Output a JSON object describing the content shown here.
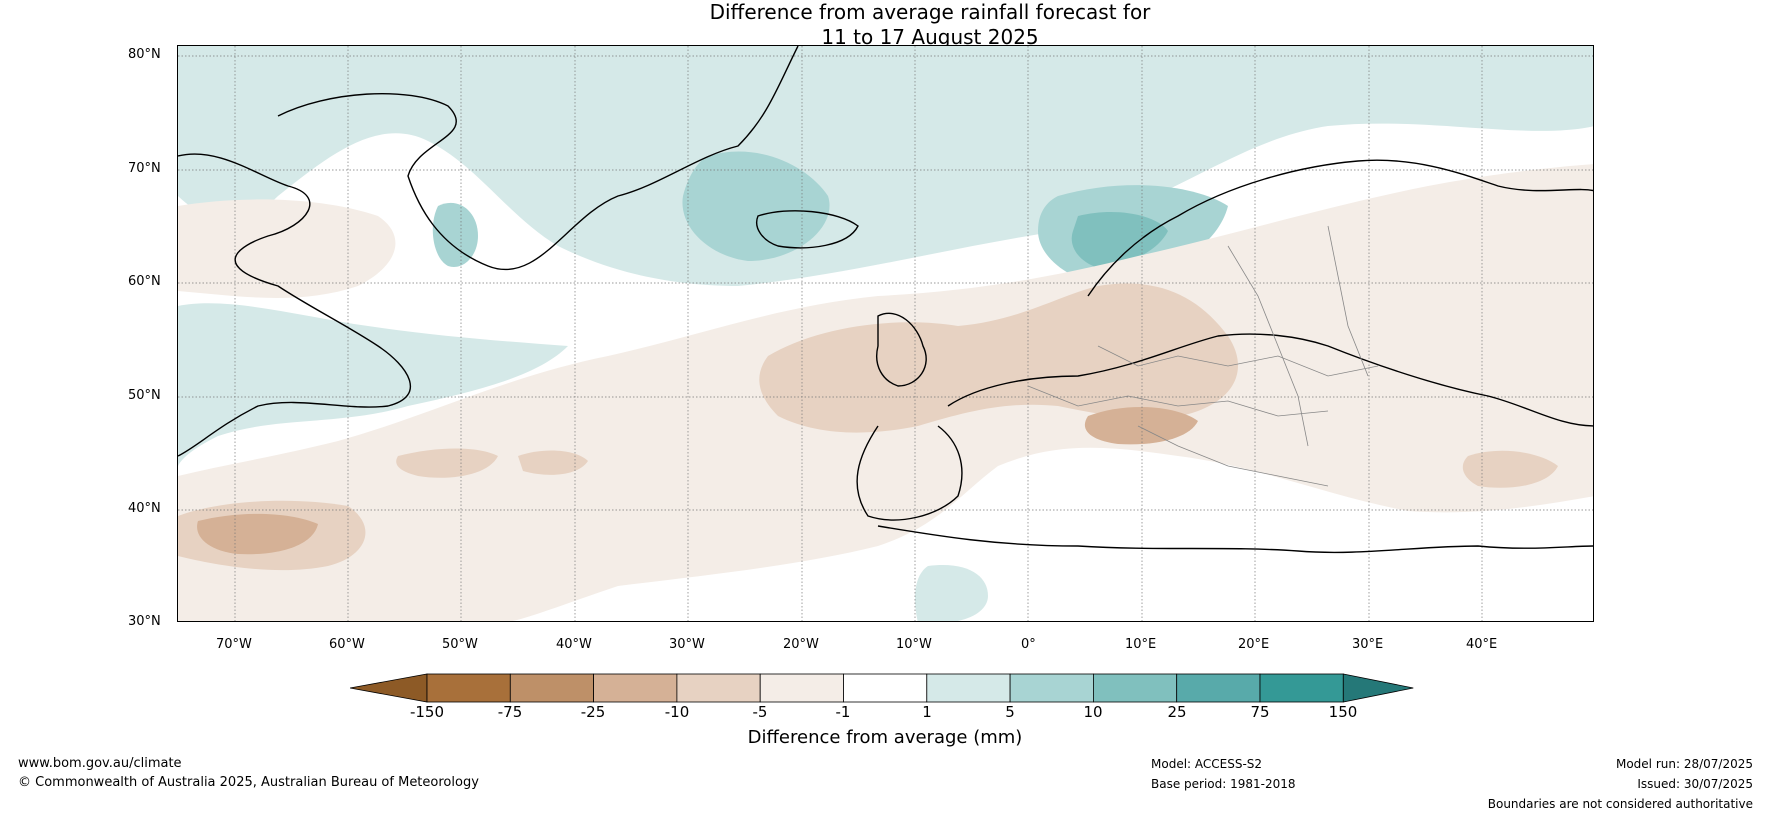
{
  "title_line1": "Difference from average rainfall forecast for",
  "title_line2": "11 to 17 August 2025",
  "lat_labels": [
    "80°N",
    "70°N",
    "60°N",
    "50°N",
    "40°N",
    "30°N"
  ],
  "lon_labels": [
    "70°W",
    "60°W",
    "50°W",
    "40°W",
    "30°W",
    "20°W",
    "10°W",
    "0°",
    "10°E",
    "20°E",
    "30°E",
    "40°E"
  ],
  "colorbar": {
    "title": "Difference from average (mm)",
    "ticks": [
      "-150",
      "-75",
      "-25",
      "-10",
      "-5",
      "-1",
      "1",
      "5",
      "10",
      "25",
      "75",
      "150"
    ],
    "colors": [
      "#a8703a",
      "#be9068",
      "#d5b196",
      "#e7d2c2",
      "#f4ede7",
      "#ffffff",
      "#d5e9e8",
      "#a8d4d3",
      "#80c0be",
      "#58aaaa",
      "#349996"
    ],
    "low_extend_color": "#8d5a26",
    "high_extend_color": "#257878"
  },
  "footer": {
    "website": "www.bom.gov.au/climate",
    "copyright": "© Commonwealth of Australia 2025, Australian Bureau of Meteorology",
    "model": "Model: ACCESS-S2",
    "base_period": "Base period: 1981-2018",
    "model_run": "Model run: 28/07/2025",
    "issued": "Issued: 30/07/2025",
    "disclaimer": "Boundaries are not considered authoritative"
  }
}
